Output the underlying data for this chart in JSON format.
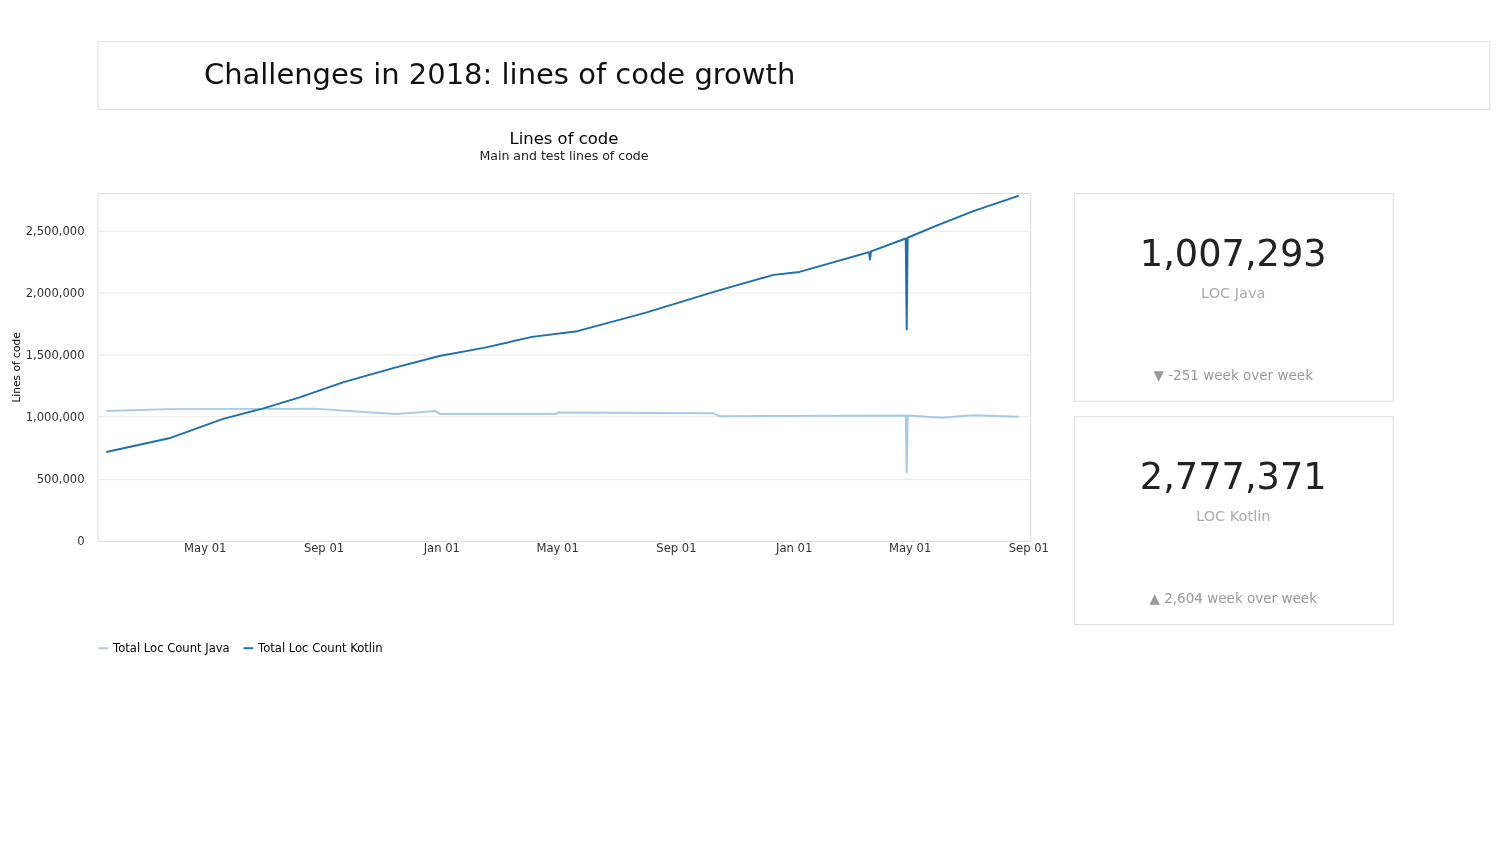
{
  "chart_data": {
    "type": "line",
    "title": "Lines of code",
    "subtitle": "Main and test lines of code",
    "ylabel": "Lines of code",
    "annotations": [
      "Challenges in 2018: lines of code growth",
      "1,007,293",
      "LOC Java",
      "▼ -251 week over week",
      "2,777,371",
      "LOC Kotlin",
      "▲ 2,604 week over week"
    ],
    "xlim": [
      "2017-01-10",
      "2019-09-03"
    ],
    "xticks": [
      {
        "value": "2017-05-01",
        "label": "May 01"
      },
      {
        "value": "2017-09-01",
        "label": "Sep 01"
      },
      {
        "value": "2018-01-01",
        "label": "Jan 01"
      },
      {
        "value": "2018-05-01",
        "label": "May 01"
      },
      {
        "value": "2018-09-01",
        "label": "Sep 01"
      },
      {
        "value": "2019-01-01",
        "label": "Jan 01"
      },
      {
        "value": "2019-05-01",
        "label": "May 01"
      },
      {
        "value": "2019-09-01",
        "label": "Sep 01"
      }
    ],
    "ylim": [
      0,
      2800000
    ],
    "yticks": [
      0,
      {
        "value": 500000,
        "label": "500,000"
      },
      {
        "value": 1000000,
        "label": "1,000,000"
      },
      {
        "value": 1500000,
        "label": "1,500,000"
      },
      {
        "value": 2000000,
        "label": "2,000,000"
      },
      {
        "value": 2500000,
        "label": "2,500,000"
      }
    ],
    "grid": "y",
    "legend": "bottom",
    "marker": "none",
    "line_style": "solid",
    "series": [
      {
        "name": "Total Loc Count Java",
        "color": "#a6cbe3",
        "x": [
          "2017-01-19",
          "2017-03-25",
          "2017-06-23",
          "2017-08-22",
          "2017-10-17",
          "2017-11-15",
          "2017-12-26",
          "2017-12-31",
          "2018-04-29",
          "2018-05-02",
          "2018-10-09",
          "2018-10-16",
          "2019-04-27",
          "2019-04-28",
          "2019-04-29",
          "2019-06-03",
          "2019-07-06",
          "2019-08-22"
        ],
        "values": [
          1046000,
          1061000,
          1063000,
          1065000,
          1036000,
          1021000,
          1046000,
          1021000,
          1021000,
          1034000,
          1028000,
          1004000,
          1009000,
          552000,
          1009000,
          992000,
          1012000,
          999000
        ]
      },
      {
        "name": "Total Loc Count Kotlin",
        "color": "#1f6fa8",
        "x": [
          "2017-01-19",
          "2017-03-25",
          "2017-05-20",
          "2017-06-29",
          "2017-08-08",
          "2017-09-21",
          "2017-11-13",
          "2017-12-30",
          "2018-02-14",
          "2018-04-05",
          "2018-05-22",
          "2018-07-31",
          "2018-10-12",
          "2018-12-11",
          "2019-01-07",
          "2019-03-20",
          "2019-03-21",
          "2019-03-22",
          "2019-04-27",
          "2019-04-28",
          "2019-04-29",
          "2019-05-27",
          "2019-07-06",
          "2019-08-22"
        ],
        "values": [
          716000,
          826000,
          982000,
          1063000,
          1158000,
          1276000,
          1393000,
          1488000,
          1554000,
          1642000,
          1688000,
          1835000,
          2008000,
          2141000,
          2165000,
          2324000,
          2265000,
          2330000,
          2434000,
          1701000,
          2440000,
          2531000,
          2654000,
          2778000
        ]
      }
    ]
  }
}
